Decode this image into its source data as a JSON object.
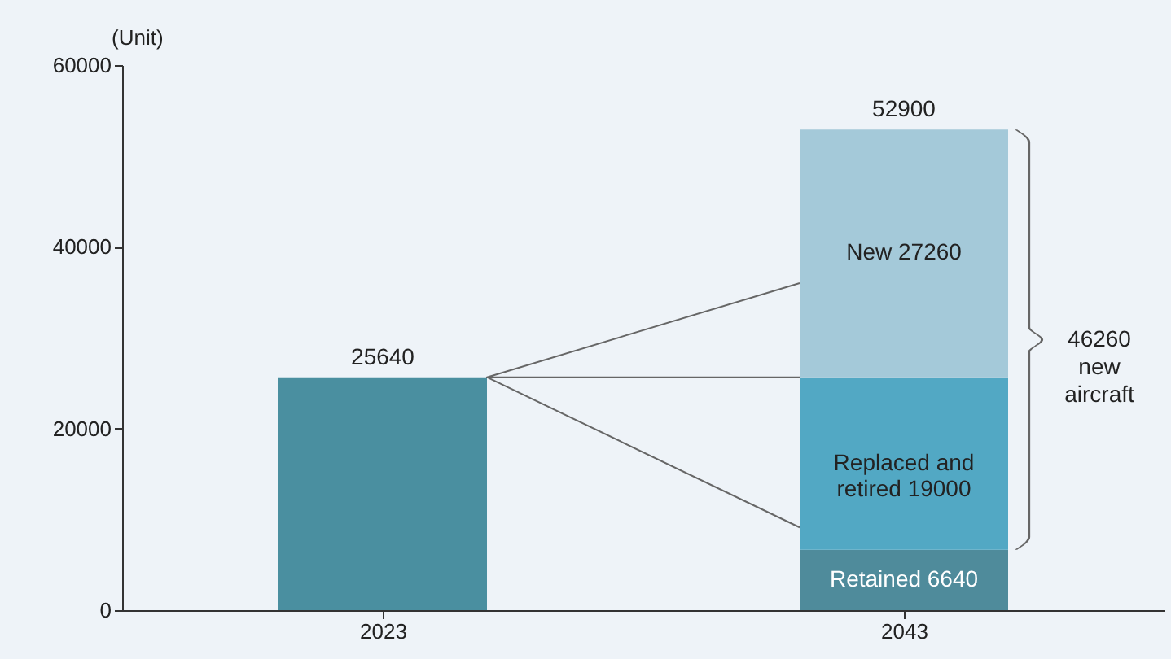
{
  "chart_data": {
    "type": "bar",
    "stacked": true,
    "ylabel": "(Unit)",
    "categories": [
      "2023",
      "2043"
    ],
    "series": [
      {
        "colors": [
          "#4a8fa0",
          "#4f8b9b"
        ],
        "values": [
          25640,
          6640
        ],
        "value_labels": [
          null,
          "Retained 6640"
        ]
      },
      {
        "color": "#52a8c4",
        "values": [
          null,
          19000
        ],
        "value_labels": [
          null,
          "Replaced and retired 19000"
        ]
      },
      {
        "color": "#a4c9d9",
        "values": [
          null,
          27260
        ],
        "value_labels": [
          null,
          "New 27260"
        ]
      }
    ],
    "totals": [
      "25640",
      "52900"
    ],
    "ylim": [
      0,
      60000
    ],
    "yticks": [
      0,
      20000,
      40000,
      60000
    ],
    "annotations": [
      "46260 new aircraft"
    ]
  }
}
